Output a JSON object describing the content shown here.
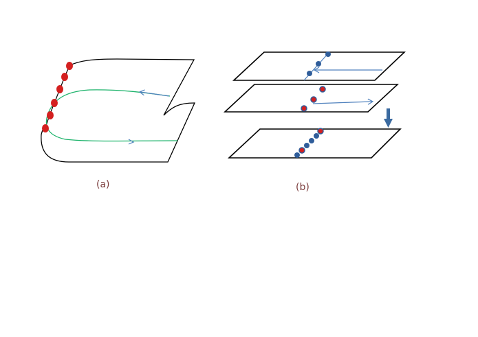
{
  "figure": {
    "panel_a": {
      "caption": "(a)"
    },
    "panel_b": {
      "caption": "(b)"
    }
  },
  "colors": {
    "outline": "#000000",
    "trajectory_green": "#1db36b",
    "arrow_blue": "#4f81bd",
    "red_point": "#d42020",
    "blue_point": "#2f5d9a",
    "down_arrow": "#3a6aa0",
    "caption": "#7a3b3b"
  }
}
